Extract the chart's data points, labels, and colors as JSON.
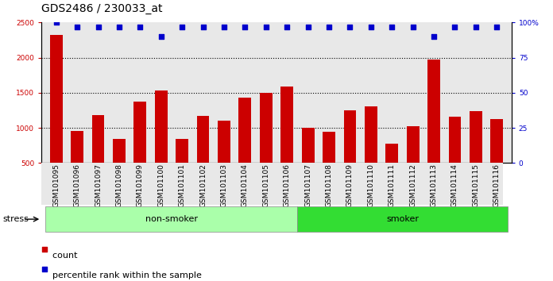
{
  "title": "GDS2486 / 230033_at",
  "samples": [
    "GSM101095",
    "GSM101096",
    "GSM101097",
    "GSM101098",
    "GSM101099",
    "GSM101100",
    "GSM101101",
    "GSM101102",
    "GSM101103",
    "GSM101104",
    "GSM101105",
    "GSM101106",
    "GSM101107",
    "GSM101108",
    "GSM101109",
    "GSM101110",
    "GSM101111",
    "GSM101112",
    "GSM101113",
    "GSM101114",
    "GSM101115",
    "GSM101116"
  ],
  "counts": [
    2320,
    960,
    1185,
    840,
    1370,
    1530,
    845,
    1175,
    1100,
    1425,
    1500,
    1590,
    1000,
    940,
    1245,
    1310,
    780,
    1020,
    1970,
    1155,
    1240,
    1120
  ],
  "percentile_ranks": [
    100,
    97,
    97,
    97,
    97,
    90,
    97,
    97,
    97,
    97,
    97,
    97,
    97,
    97,
    97,
    97,
    97,
    97,
    90,
    97,
    97,
    97
  ],
  "non_smoker_count": 12,
  "smoker_count": 10,
  "bar_color": "#cc0000",
  "dot_color": "#0000cc",
  "ylim_left": [
    500,
    2500
  ],
  "ylim_right": [
    0,
    100
  ],
  "yticks_left": [
    500,
    1000,
    1500,
    2000,
    2500
  ],
  "yticks_right": [
    0,
    25,
    50,
    75,
    100
  ],
  "grid_color": "#000000",
  "bg_color": "#ffffff",
  "plot_bg_color": "#e8e8e8",
  "non_smoker_color": "#aaffaa",
  "smoker_color": "#33dd33",
  "stress_label": "stress",
  "non_smoker_label": "non-smoker",
  "smoker_label": "smoker",
  "legend_count_label": "count",
  "legend_pct_label": "percentile rank within the sample",
  "title_fontsize": 10,
  "tick_fontsize": 6.5,
  "band_fontsize": 8,
  "legend_fontsize": 8,
  "bar_width": 0.6,
  "dot_size": 18
}
